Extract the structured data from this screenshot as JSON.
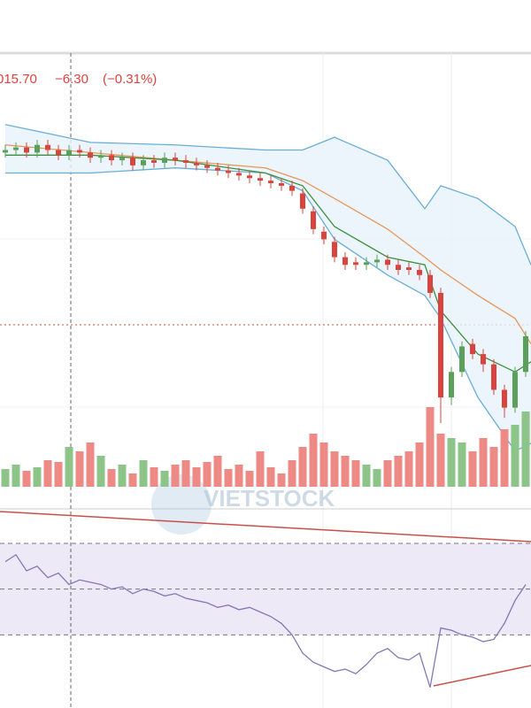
{
  "header": {
    "price": "015.70",
    "change": "−6.30",
    "change_pct": "(−0.31%)"
  },
  "watermark": "VIETSTOCK",
  "chart_data": [
    {
      "type": "candlestick",
      "xlim": [
        -0.5,
        49.5
      ],
      "ylim": [
        940,
        1110
      ],
      "up_color": "#5aa05a",
      "down_color": "#d9443f",
      "reference_line": 1003.5,
      "open": [
        1071,
        1072,
        1073,
        1071,
        1074,
        1072,
        1070,
        1072,
        1071,
        1069,
        1070,
        1068,
        1069,
        1066,
        1068,
        1067,
        1069,
        1068,
        1067,
        1066,
        1065,
        1064,
        1063,
        1062,
        1061,
        1060,
        1059,
        1058,
        1055,
        1048,
        1040,
        1036,
        1030,
        1028,
        1027,
        1028,
        1029,
        1027,
        1026,
        1025,
        1023,
        1016,
        975,
        985,
        996,
        992,
        988,
        978,
        971,
        985
      ],
      "high": [
        1074,
        1075,
        1075,
        1076,
        1076,
        1074,
        1074,
        1074,
        1073,
        1072,
        1072,
        1071,
        1071,
        1070,
        1070,
        1071,
        1071,
        1070,
        1069,
        1068,
        1067,
        1066,
        1065,
        1064,
        1063,
        1062,
        1061,
        1060,
        1057,
        1050,
        1042,
        1038,
        1032,
        1030,
        1030,
        1031,
        1031,
        1029,
        1028,
        1027,
        1025,
        1018,
        987,
        997,
        998,
        994,
        990,
        980,
        987,
        1001
      ],
      "low": [
        1069,
        1070,
        1069,
        1069,
        1070,
        1068,
        1068,
        1069,
        1067,
        1067,
        1066,
        1066,
        1064,
        1064,
        1065,
        1065,
        1066,
        1065,
        1064,
        1063,
        1062,
        1061,
        1060,
        1059,
        1058,
        1057,
        1056,
        1054,
        1047,
        1039,
        1035,
        1028,
        1025,
        1025,
        1025,
        1026,
        1025,
        1023,
        1023,
        1021,
        1014,
        965,
        972,
        983,
        990,
        985,
        976,
        967,
        969,
        983
      ],
      "close": [
        1072,
        1073,
        1071,
        1074,
        1072,
        1070,
        1072,
        1071,
        1069,
        1070,
        1068,
        1069,
        1066,
        1068,
        1067,
        1069,
        1068,
        1067,
        1066,
        1065,
        1064,
        1063,
        1062,
        1061,
        1060,
        1059,
        1058,
        1056,
        1049,
        1041,
        1037,
        1030,
        1027,
        1027,
        1028,
        1029,
        1027,
        1025,
        1025,
        1023,
        1016,
        975,
        985,
        995,
        992,
        988,
        978,
        971,
        985,
        999
      ],
      "overlays": [
        {
          "x": [
            0,
            8,
            16,
            24.5,
            28,
            31,
            36,
            39.5,
            41,
            44.5,
            48,
            49.5
          ],
          "values": [
            1082,
            1075,
            1074,
            1072,
            1072,
            1077,
            1068,
            1049,
            1058,
            1053,
            1042,
            1027
          ],
          "color": "#6aaed6"
        },
        {
          "x": [
            0,
            8,
            16,
            24.5,
            28,
            31,
            36,
            39.5,
            41,
            44.5,
            48,
            49.5
          ],
          "values": [
            1063,
            1063,
            1065,
            1063,
            1056,
            1037,
            1023,
            1015,
            1006,
            975,
            954,
            957
          ],
          "color": "#6aaed6"
        },
        {
          "x": [
            0,
            8,
            16,
            24.5,
            28,
            31,
            36,
            39.5,
            41,
            44.5,
            48,
            49.5
          ],
          "values": [
            1074,
            1071,
            1068,
            1065,
            1060,
            1053,
            1041,
            1030,
            1025,
            1015,
            1006,
            996
          ],
          "color": "#e8975a"
        },
        {
          "x": [
            0,
            8,
            16,
            24.5,
            28,
            31,
            36,
            39.5,
            41,
            44.5,
            48,
            49.5
          ],
          "values": [
            1070,
            1070,
            1068,
            1063,
            1058,
            1042,
            1030,
            1027,
            1009,
            992,
            985,
            989
          ],
          "color": "#3d8f3d"
        }
      ]
    },
    {
      "type": "volume",
      "ylim": [
        0,
        100
      ],
      "values": [
        20,
        25,
        18,
        22,
        30,
        28,
        45,
        40,
        50,
        35,
        20,
        25,
        15,
        30,
        22,
        18,
        25,
        30,
        22,
        28,
        35,
        20,
        25,
        18,
        40,
        22,
        15,
        30,
        45,
        60,
        50,
        40,
        35,
        30,
        25,
        20,
        30,
        35,
        40,
        50,
        90,
        60,
        55,
        50,
        40,
        55,
        45,
        65,
        70,
        85
      ]
    },
    {
      "type": "line",
      "ylim": [
        -2,
        75.4
      ],
      "yticks": [
        30,
        50,
        70
      ],
      "color": "#8577b5",
      "values": [
        62,
        65,
        58,
        60,
        55,
        57,
        52,
        54,
        53,
        52,
        50,
        51,
        48,
        50,
        49,
        47,
        48,
        46,
        45,
        44,
        42,
        43,
        41,
        42,
        40,
        38,
        35,
        30,
        22,
        18,
        16,
        14,
        15,
        13,
        17,
        22,
        24,
        20,
        19,
        22,
        7,
        33,
        32,
        30,
        29,
        27,
        28,
        35,
        45,
        52
      ]
    }
  ]
}
